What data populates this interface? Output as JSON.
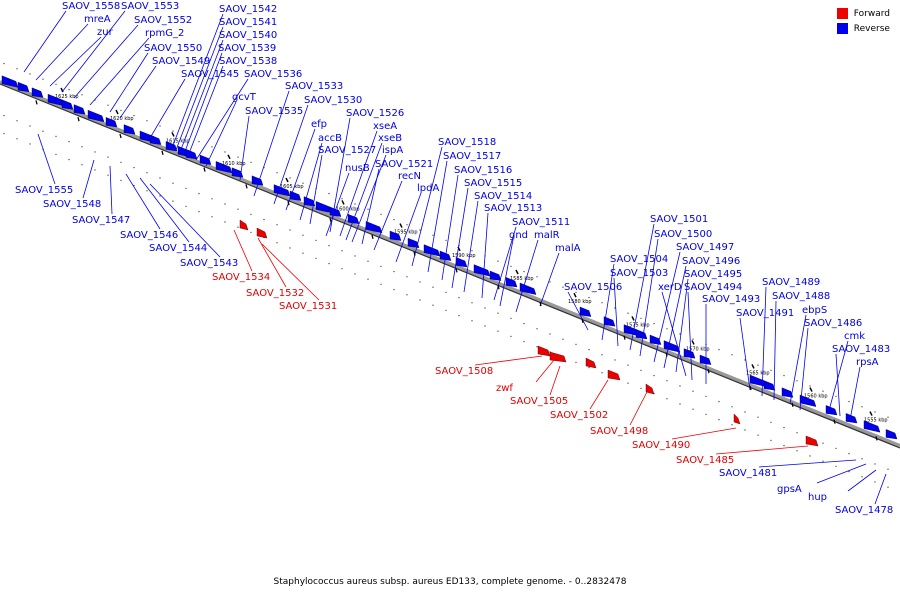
{
  "legend": {
    "forward_label": "Forward",
    "reverse_label": "Reverse",
    "forward_color": "#ee0000",
    "reverse_color": "#0000ee"
  },
  "caption": "Staphylococcus aureus subsp. aureus ED133, complete genome. - 0..2832478",
  "kbp_ticks": [
    "1625 kbp",
    "1620 kbp",
    "1615 kbp",
    "1610 kbp",
    "1605 kbp",
    "1600 kbp",
    "1595 kbp",
    "1590 kbp",
    "1585 kbp",
    "1580 kbp",
    "1575 kbp",
    "1570 kbp",
    "1565 kbp",
    "1560 kbp",
    "1555 kbp"
  ],
  "genes_reverse": [
    "SAOV_1558",
    "mreA",
    "zur",
    "SAOV_1553",
    "SAOV_1552",
    "rpmG_2",
    "SAOV_1550",
    "SAOV_1549",
    "SAOV_1545",
    "SAOV_1542",
    "SAOV_1541",
    "SAOV_1540",
    "SAOV_1539",
    "SAOV_1538",
    "SAOV_1536",
    "gcvT",
    "SAOV_1535",
    "SAOV_1533",
    "SAOV_1530",
    "efp",
    "accB",
    "SAOV_1527",
    "nusB",
    "SAOV_1526",
    "xseA",
    "xseB",
    "ispA",
    "SAOV_1521",
    "recN",
    "lpdA",
    "SAOV_1518",
    "SAOV_1517",
    "SAOV_1516",
    "SAOV_1515",
    "SAOV_1514",
    "SAOV_1513",
    "SAOV_1511",
    "gnd",
    "malR",
    "malA",
    "SAOV_1506",
    "SAOV_1504",
    "SAOV_1503",
    "SAOV_1501",
    "SAOV_1500",
    "SAOV_1497",
    "SAOV_1496",
    "SAOV_1495",
    "xerD",
    "SAOV_1494",
    "SAOV_1493",
    "SAOV_1491",
    "SAOV_1489",
    "SAOV_1488",
    "ebpS",
    "SAOV_1486",
    "cmk",
    "SAOV_1483",
    "rpsA",
    "SAOV_1555",
    "SAOV_1548",
    "SAOV_1547",
    "SAOV_1546",
    "SAOV_1544",
    "SAOV_1543",
    "SAOV_1481",
    "gpsA",
    "hup",
    "SAOV_1478"
  ],
  "genes_forward": [
    "SAOV_1534",
    "SAOV_1532",
    "SAOV_1531",
    "SAOV_1508",
    "zwf",
    "SAOV_1505",
    "SAOV_1502",
    "SAOV_1498",
    "SAOV_1490",
    "SAOV_1485"
  ]
}
